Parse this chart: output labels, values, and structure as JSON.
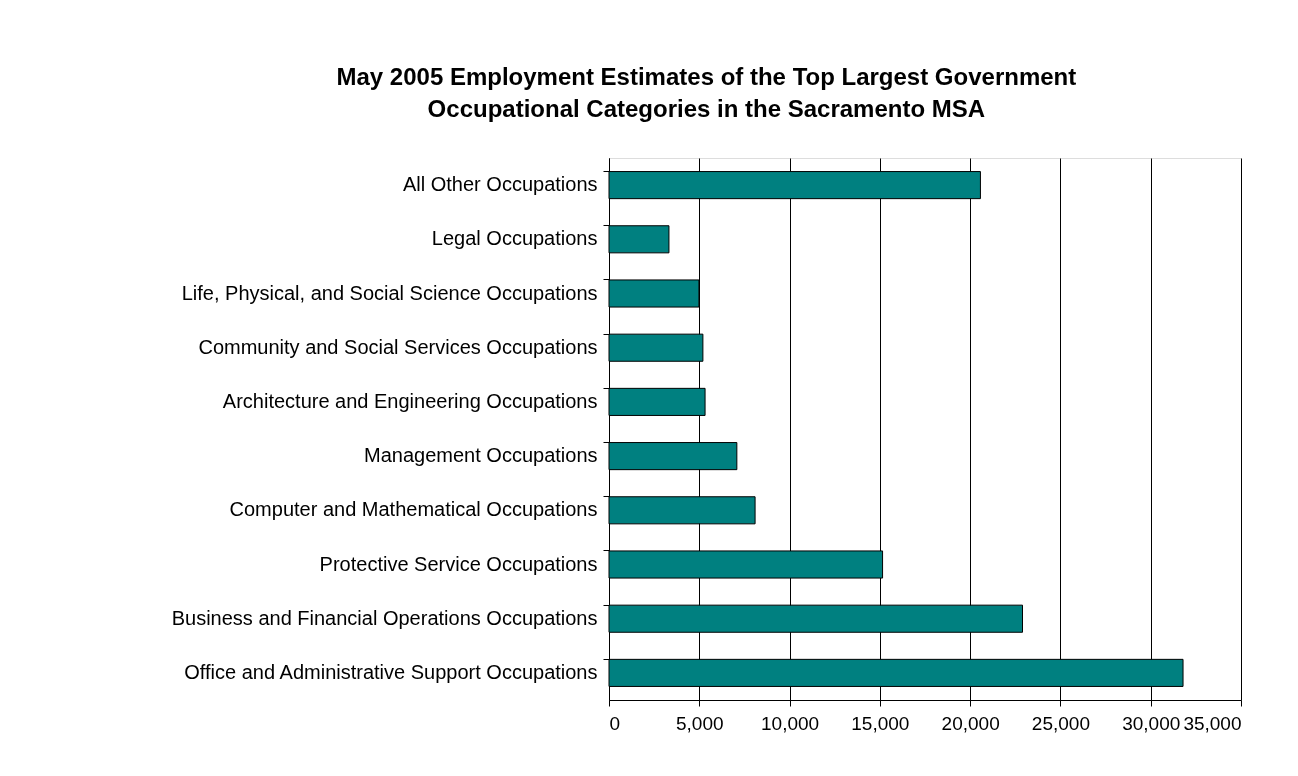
{
  "chart_data": {
    "type": "bar",
    "orientation": "horizontal",
    "title": "May 2005 Employment Estimates of the Top Largest Government\nOccupational Categories in the Sacramento MSA",
    "categories": [
      "All Other Occupations",
      "Legal Occupations",
      "Life, Physical, and Social Science Occupations",
      "Community and Social Services Occupations",
      "Architecture and Engineering Occupations",
      "Management Occupations",
      "Computer and Mathematical Occupations",
      "Protective Service Occupations",
      "Business and Financial Operations Occupations",
      "Office and Administrative Support Occupations"
    ],
    "values": [
      20570,
      3320,
      4980,
      5200,
      5320,
      7080,
      8090,
      15150,
      22900,
      31790
    ],
    "color": "#008080",
    "xlim": [
      0,
      35000
    ],
    "xticks": [
      0,
      {
        "value": 5000,
        "label": "5,000"
      },
      {
        "value": 10000,
        "label": "10,000"
      },
      {
        "value": 15000,
        "label": "15,000"
      },
      {
        "value": 20000,
        "label": "20,000"
      },
      {
        "value": 25000,
        "label": "25,000"
      },
      {
        "value": 30000,
        "label": "30,000"
      },
      {
        "value": 35000,
        "label": "35,000"
      }
    ],
    "grid": "x"
  }
}
